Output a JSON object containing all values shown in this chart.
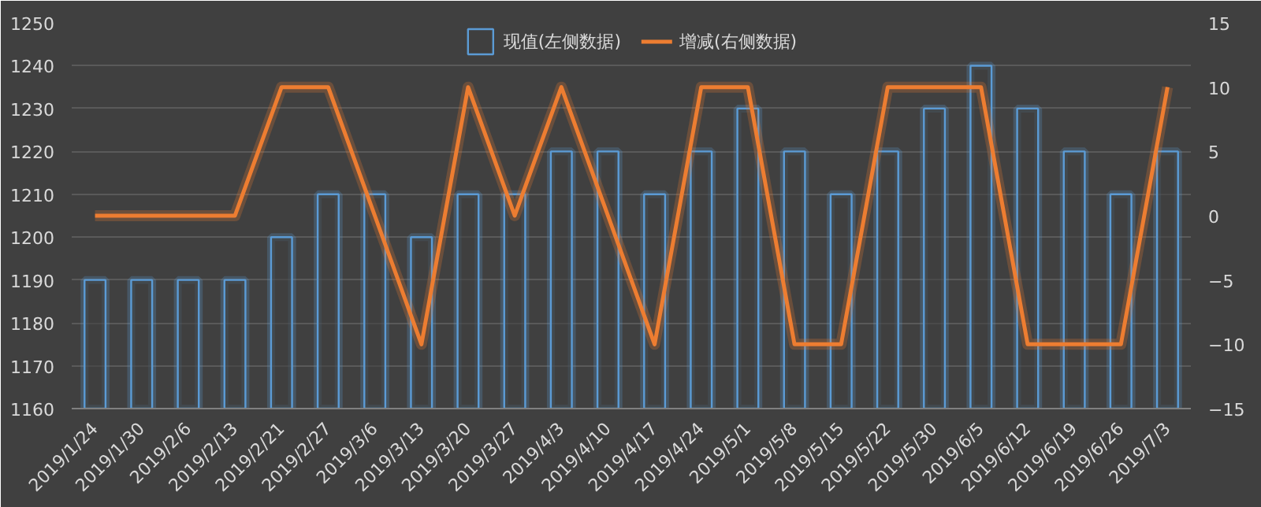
{
  "chart_data": {
    "type": "bar",
    "categories": [
      "2019/1/24",
      "2019/1/30",
      "2019/2/6",
      "2019/2/13",
      "2019/2/21",
      "2019/2/27",
      "2019/3/6",
      "2019/3/13",
      "2019/3/20",
      "2019/3/27",
      "2019/4/3",
      "2019/4/10",
      "2019/4/17",
      "2019/4/24",
      "2019/5/1",
      "2019/5/8",
      "2019/5/15",
      "2019/5/22",
      "2019/5/30",
      "2019/6/5",
      "2019/6/12",
      "2019/6/19",
      "2019/6/26",
      "2019/7/3"
    ],
    "series": [
      {
        "name": "现值(左侧数据)",
        "color": "#5b9bd5",
        "values": [
          1190,
          1190,
          1190,
          1190,
          1200,
          1210,
          1210,
          1200,
          1210,
          1210,
          1220,
          1220,
          1210,
          1220,
          1230,
          1220,
          1210,
          1220,
          1230,
          1240,
          1230,
          1220,
          1210,
          1220
        ]
      },
      {
        "name": "增减(右侧数据)",
        "type": "line",
        "axis": "y2",
        "color": "#ed7d31",
        "values": [
          0,
          0,
          0,
          0,
          10,
          10,
          0,
          -10,
          10,
          0,
          10,
          0,
          -10,
          10,
          10,
          -10,
          -10,
          10,
          10,
          10,
          -10,
          -10,
          -10,
          10
        ]
      }
    ],
    "ylim": [
      1160,
      1250
    ],
    "yticks": [
      1160,
      1170,
      1180,
      1190,
      1200,
      1210,
      1220,
      1230,
      1240,
      1250
    ],
    "y2lim": [
      -15,
      15
    ],
    "y2ticks": [
      -15,
      -10,
      -5,
      0,
      5,
      10,
      15
    ],
    "grid": "y",
    "legend": "top",
    "marker": "none",
    "line_style": "solid"
  }
}
